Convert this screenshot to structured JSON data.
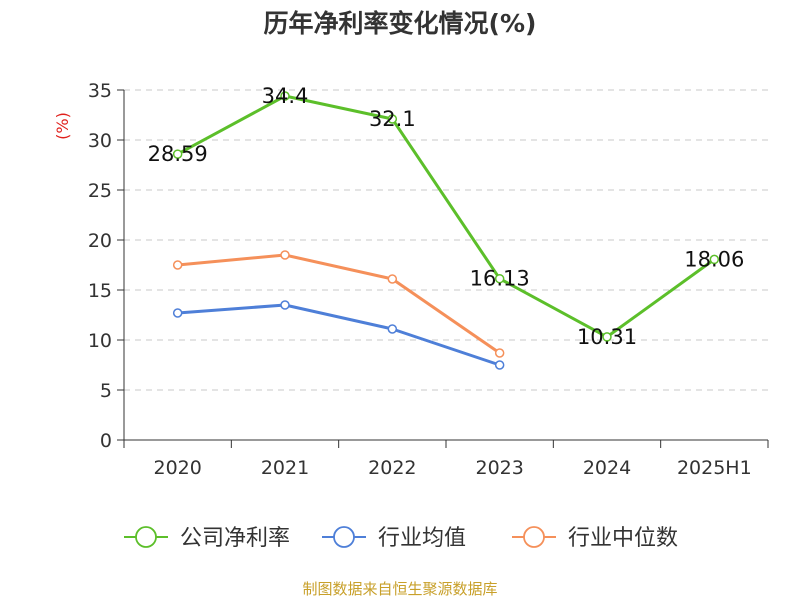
{
  "colors": {
    "company": "#5cbf2a",
    "industry_avg": "#4e7fd8",
    "industry_median": "#f5905a",
    "grid": "#c8c8c8",
    "axis": "#333333",
    "ylabel": "#e0201c",
    "source": "#c8a02a"
  },
  "chart_data": {
    "type": "line",
    "title": "历年净利率变化情况(%)",
    "ylabel": "(%)",
    "xlabel": "",
    "categories": [
      "2020",
      "2021",
      "2022",
      "2023",
      "2024",
      "2025H1"
    ],
    "ylim": [
      0,
      35
    ],
    "yticks": [
      0,
      5,
      10,
      15,
      20,
      25,
      30,
      35
    ],
    "grid": true,
    "legend_position": "bottom",
    "series": [
      {
        "name": "公司净利率",
        "color_key": "company",
        "values": [
          28.59,
          34.4,
          32.1,
          16.13,
          10.31,
          18.06
        ],
        "labels": [
          "28.59",
          "34.4",
          "32.1",
          "16.13",
          "10.31",
          "18.06"
        ]
      },
      {
        "name": "行业均值",
        "color_key": "industry_avg",
        "values": [
          12.7,
          13.5,
          11.1,
          7.5,
          null,
          null
        ],
        "labels": []
      },
      {
        "name": "行业中位数",
        "color_key": "industry_median",
        "values": [
          17.5,
          18.5,
          16.1,
          8.7,
          null,
          null
        ],
        "labels": []
      }
    ]
  },
  "source_text": "制图数据来自恒生聚源数据库"
}
